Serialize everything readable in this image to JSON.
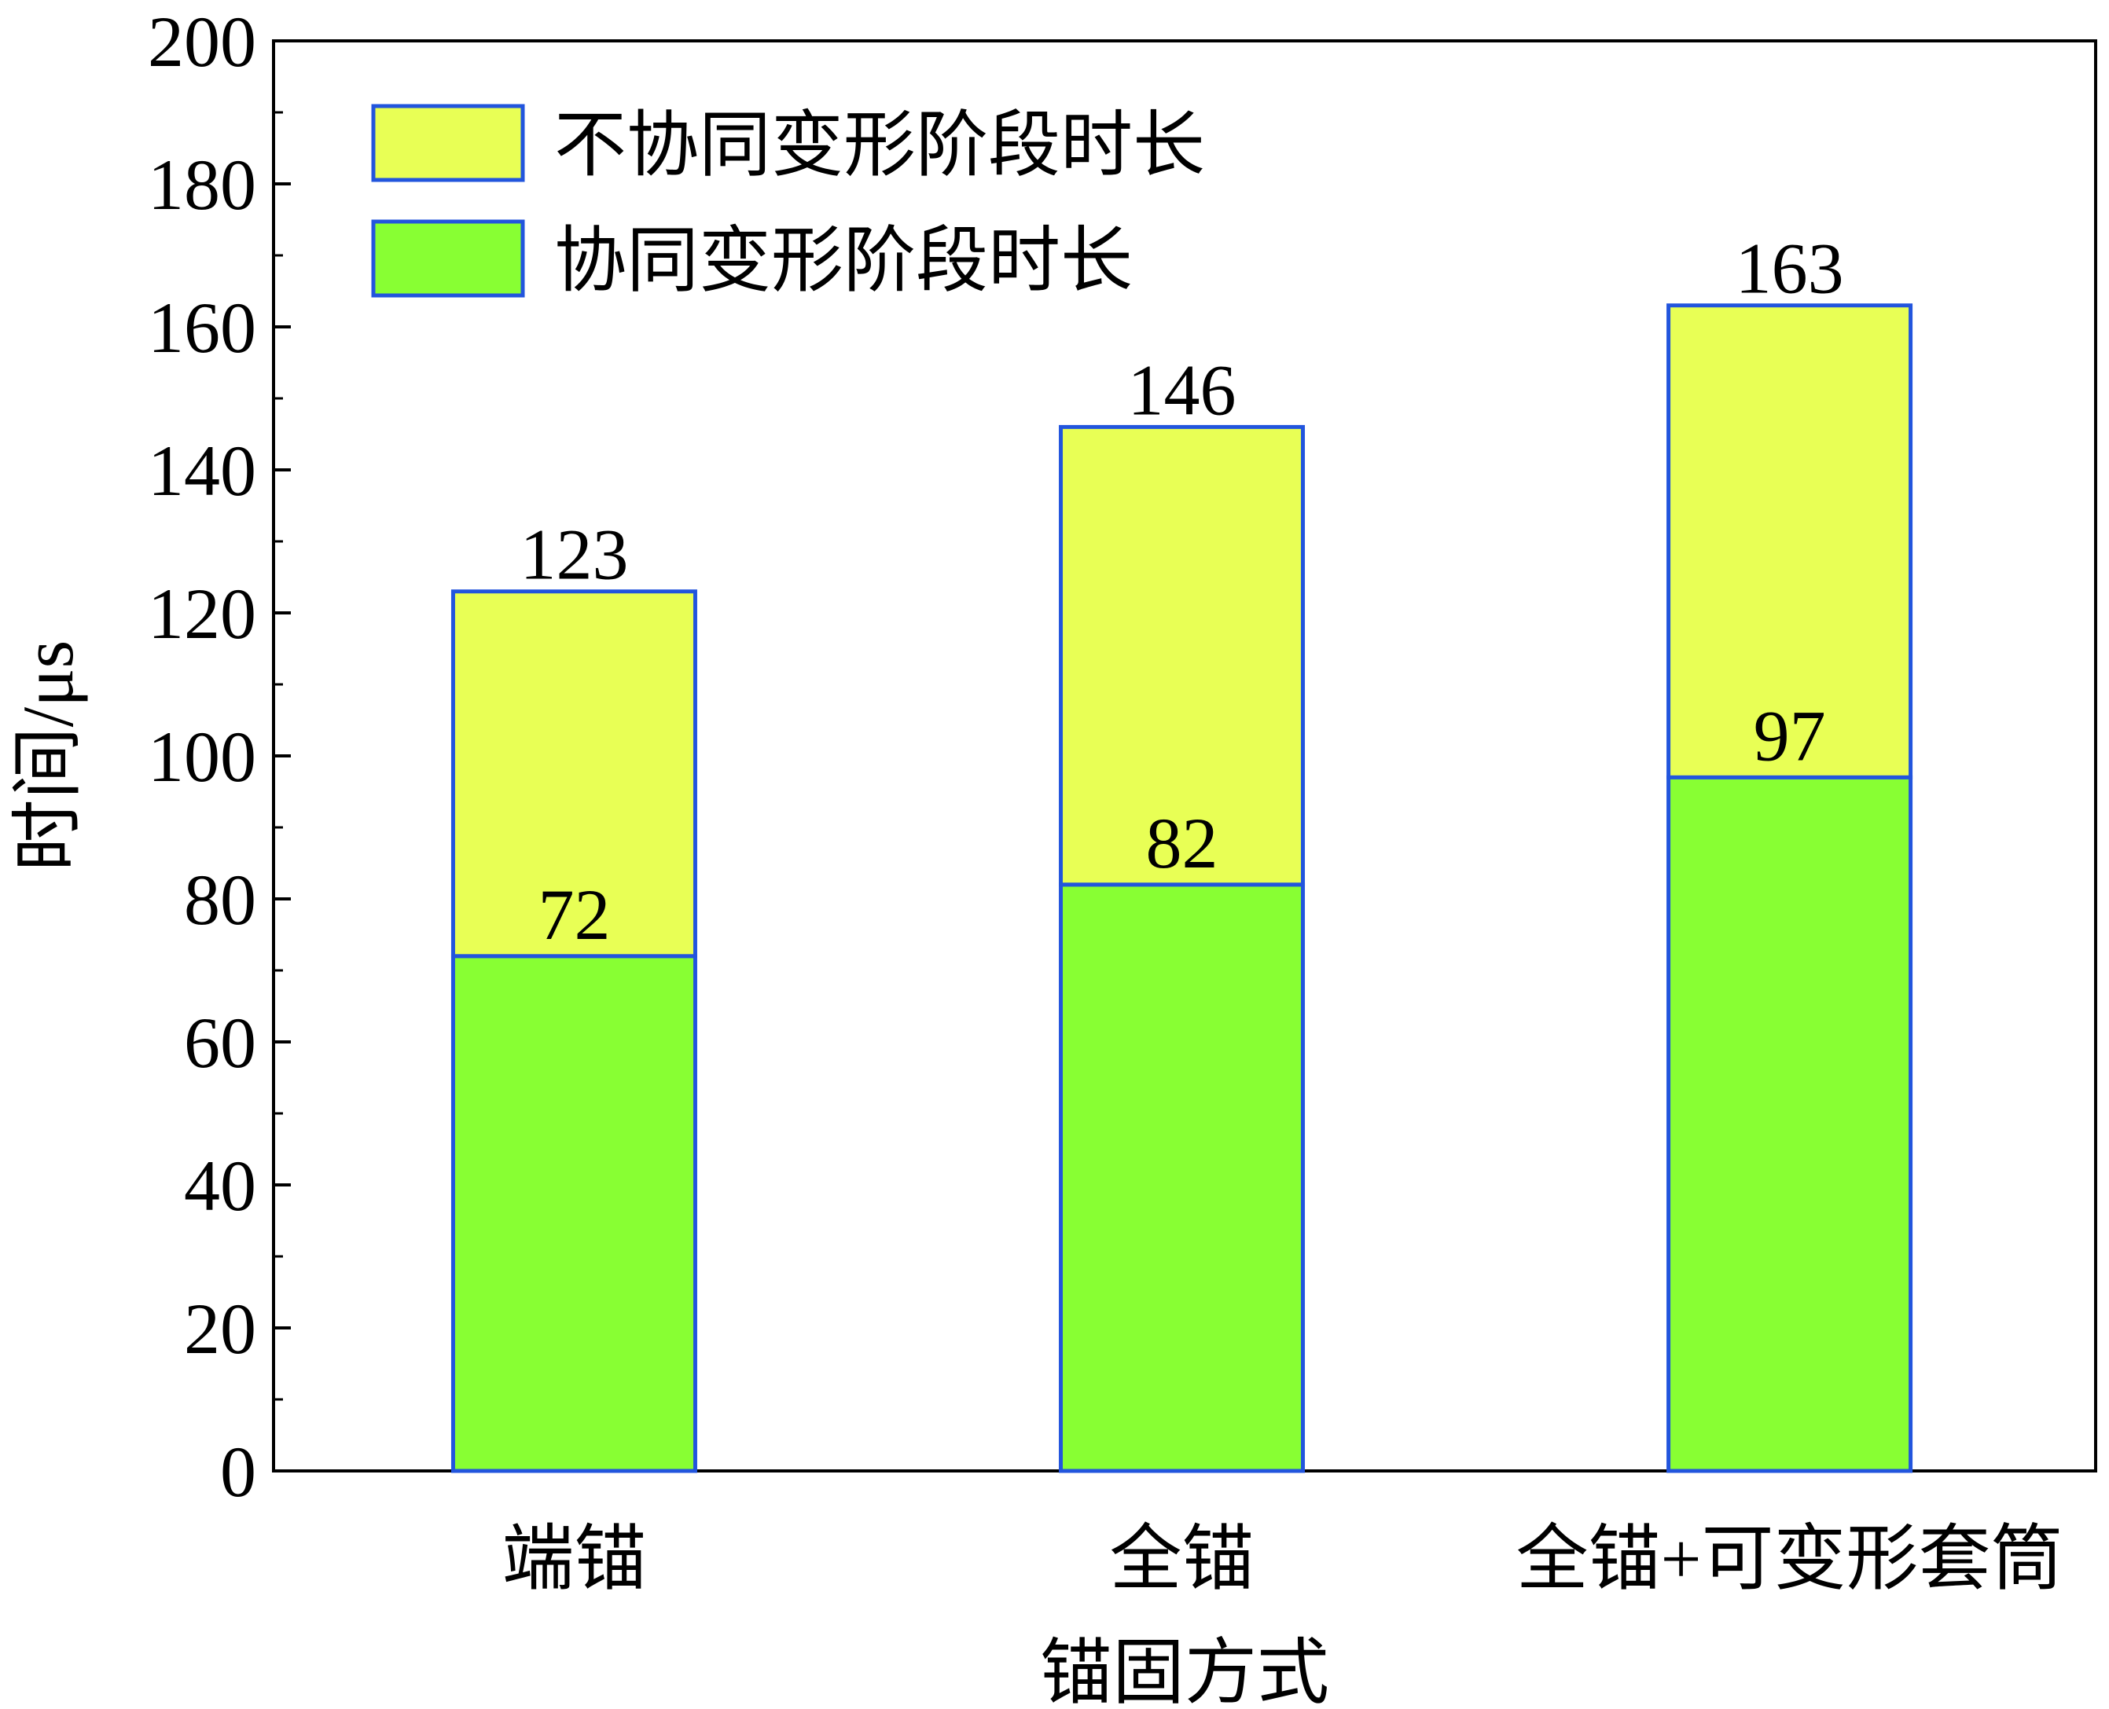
{
  "chart_data": {
    "type": "bar",
    "stacked": true,
    "categories": [
      "端锚",
      "全锚",
      "全锚+可变形套筒"
    ],
    "series": [
      {
        "name": "协同变形阶段时长",
        "values": [
          72,
          82,
          97
        ],
        "color": "#88ff33"
      },
      {
        "name": "不协同变形阶段时长",
        "values": [
          51,
          64,
          66
        ],
        "color": "#e8ff55"
      }
    ],
    "segment_boundary_labels": [
      "72",
      "82",
      "97"
    ],
    "total_labels": [
      "123",
      "146",
      "163"
    ],
    "totals": [
      123,
      146,
      163
    ],
    "xlabel": "锚固方式",
    "ylabel": "时间/μs",
    "ylim": [
      0,
      200
    ],
    "yticks": [
      "0",
      "20",
      "40",
      "60",
      "80",
      "100",
      "120",
      "140",
      "160",
      "180",
      "200"
    ],
    "grid": false,
    "legend": {
      "placement": "top-left",
      "entries": [
        "不协同变形阶段时长",
        "协同变形阶段时长"
      ],
      "colors": [
        "#e8ff55",
        "#88ff33"
      ]
    },
    "bar_edge_color": "#2255dd"
  }
}
